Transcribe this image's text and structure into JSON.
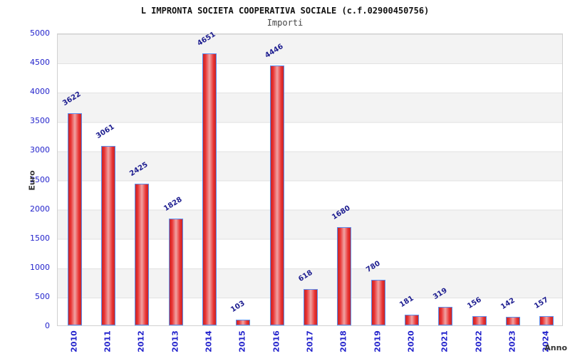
{
  "header": {
    "title": "L IMPRONTA SOCIETA COOPERATIVA SOCIALE (c.f.02900450756)",
    "subtitle": "Importi"
  },
  "chart_data": {
    "type": "bar",
    "title": "L IMPRONTA SOCIETA COOPERATIVA SOCIALE (c.f.02900450756)",
    "subtitle": "Importi",
    "xlabel": "Anno",
    "ylabel": "Euro",
    "categories": [
      "2010",
      "2011",
      "2012",
      "2013",
      "2014",
      "2015",
      "2016",
      "2017",
      "2018",
      "2019",
      "2020",
      "2021",
      "2022",
      "2023",
      "2024"
    ],
    "values": [
      3622,
      3061,
      2425,
      1828,
      4651,
      103,
      4446,
      618,
      1680,
      780,
      181,
      319,
      156,
      142,
      157
    ],
    "ylim": [
      0,
      5000
    ],
    "ytick_step": 500,
    "grid": true,
    "legend": "none",
    "colors": {
      "bar_fill_main": "#e93030",
      "bar_fill_edge": "#c62626",
      "bar_fill_highlight": "#f0a3a3",
      "bar_border": "#5b8def",
      "tick_label": "#2323cc",
      "value_label": "#1c1c8f",
      "band_gray": "#f3f3f3",
      "band_white": "#ffffff",
      "grid_line": "#e2e2e2"
    }
  }
}
